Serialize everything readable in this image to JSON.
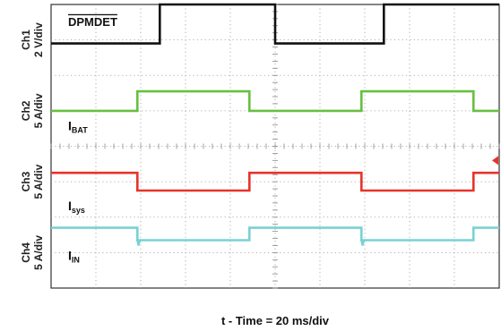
{
  "chart_data": {
    "type": "line",
    "title": "",
    "xlabel": "t - Time = 20 ms/div",
    "grid": true,
    "divisions": {
      "x": 10,
      "y": 8
    },
    "time_per_div_ms": 20,
    "xlim_ms": [
      0,
      200
    ],
    "series": [
      {
        "channel": "Ch1",
        "scale": "2 V/div",
        "signal": "DPMDET",
        "overline": true,
        "color": "#111111",
        "low_div": 6.9,
        "high_div": 8.0,
        "low_ms": [
          [
            0,
            48.5
          ],
          [
            100,
            148.5
          ]
        ],
        "spike_ms": []
      },
      {
        "channel": "Ch2",
        "scale": "5 A/div",
        "signal": "I",
        "subscript": "BAT",
        "color": "#66c040",
        "low_div": 5.0,
        "high_div": 5.55,
        "low_ms": [
          [
            0,
            38.5
          ],
          [
            88.5,
            138.5
          ],
          [
            188.5,
            200
          ]
        ],
        "spike_ms": []
      },
      {
        "channel": "Ch3",
        "scale": "5 A/div",
        "signal": "I",
        "subscript": "sys",
        "color": "#e8332a",
        "low_div": 2.75,
        "high_div": 3.25,
        "low_ms": [
          [
            38.5,
            88.5
          ],
          [
            138.5,
            188.5
          ]
        ],
        "spike_ms": []
      },
      {
        "channel": "Ch4",
        "scale": "5 A/div",
        "signal": "I",
        "subscript": "IN",
        "color": "#78d2d2",
        "low_div": 1.35,
        "high_div": 1.7,
        "low_ms": [
          [
            38.5,
            88.5
          ],
          [
            138.5,
            188.5
          ]
        ],
        "spike_ms": [
          38.5,
          138.5
        ]
      }
    ],
    "marker": {
      "channel": "Ch3",
      "color": "#e8332a",
      "shape": "left-pointing triangle"
    }
  }
}
